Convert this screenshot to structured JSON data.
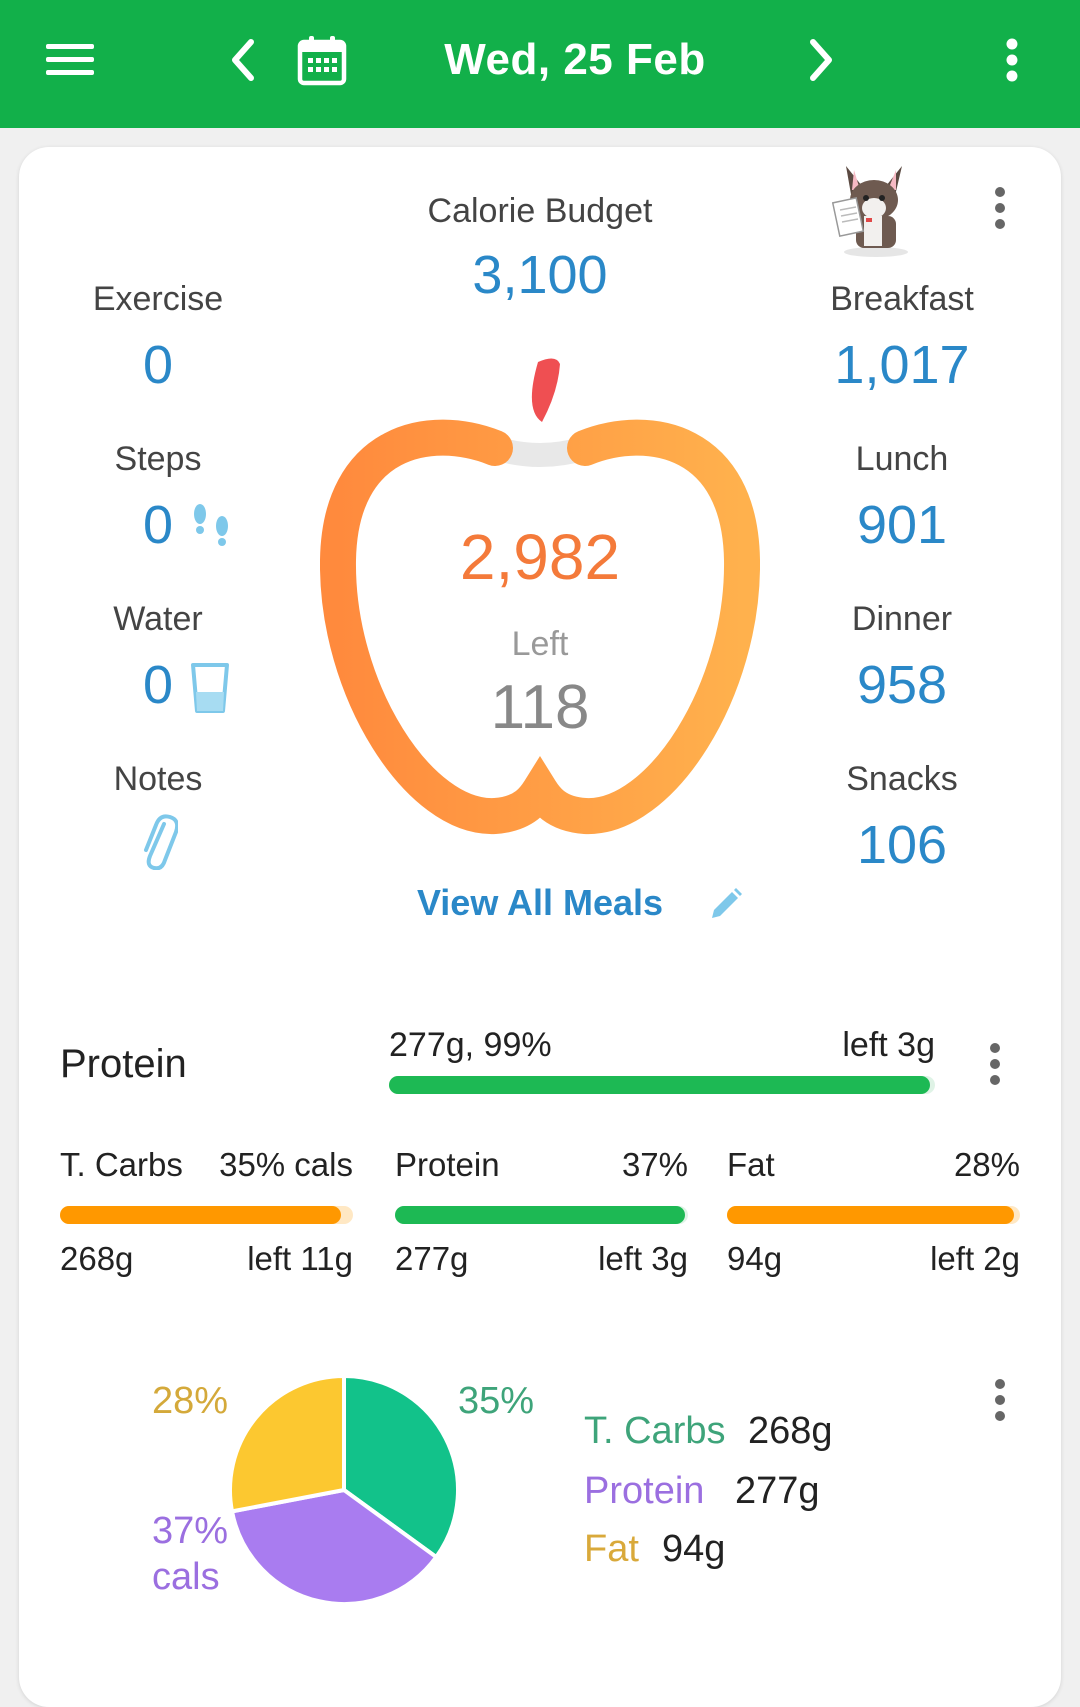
{
  "header": {
    "date": "Wed, 25 Feb",
    "icons": [
      "menu-icon",
      "chevron-left-icon",
      "calendar-icon",
      "chevron-right-icon",
      "more-vert-icon"
    ]
  },
  "summary": {
    "budget_label": "Calorie Budget",
    "budget_value": "3,100",
    "eaten_value": "2,982",
    "left_label": "Left",
    "left_value": "118",
    "view_all_label": "View All Meals",
    "left_col": {
      "exercise_label": "Exercise",
      "exercise_value": "0",
      "steps_label": "Steps",
      "steps_value": "0",
      "water_label": "Water",
      "water_value": "0",
      "notes_label": "Notes"
    },
    "meals": {
      "breakfast_label": "Breakfast",
      "breakfast_value": "1,017",
      "lunch_label": "Lunch",
      "lunch_value": "901",
      "dinner_label": "Dinner",
      "dinner_value": "958",
      "snacks_label": "Snacks",
      "snacks_value": "106"
    }
  },
  "protein_goal": {
    "label": "Protein",
    "amount": "277g, 99%",
    "left": "left 3g",
    "progress": 0.99,
    "color": "#1db954"
  },
  "macros": [
    {
      "name": "T. Carbs",
      "pct": "35% cals",
      "grams": "268g",
      "left": "left 11g",
      "color": "#ff9800",
      "progress": 0.96
    },
    {
      "name": "Protein",
      "pct": "37%",
      "grams": "277g",
      "left": "left 3g",
      "color": "#1db954",
      "progress": 0.99
    },
    {
      "name": "Fat",
      "pct": "28%",
      "grams": "94g",
      "left": "left 2g",
      "color": "#ff9800",
      "progress": 0.98
    }
  ],
  "pie": {
    "labels": {
      "fat": "28%",
      "carbs": "35%",
      "protein_pct": "37%",
      "protein_cals": "cals"
    },
    "slices": [
      {
        "name": "T. Carbs",
        "value": 35,
        "color": "#12c28a"
      },
      {
        "name": "Protein",
        "value": 37,
        "color": "#a97cf0"
      },
      {
        "name": "Fat",
        "value": 28,
        "color": "#fcc830"
      }
    ],
    "legend": [
      {
        "name": "T. Carbs",
        "grams": "268g",
        "color": "#3ea47a"
      },
      {
        "name": "Protein",
        "grams": "277g",
        "color": "#9b6fe0"
      },
      {
        "name": "Fat",
        "grams": "94g",
        "color": "#d9a93a"
      }
    ]
  }
}
